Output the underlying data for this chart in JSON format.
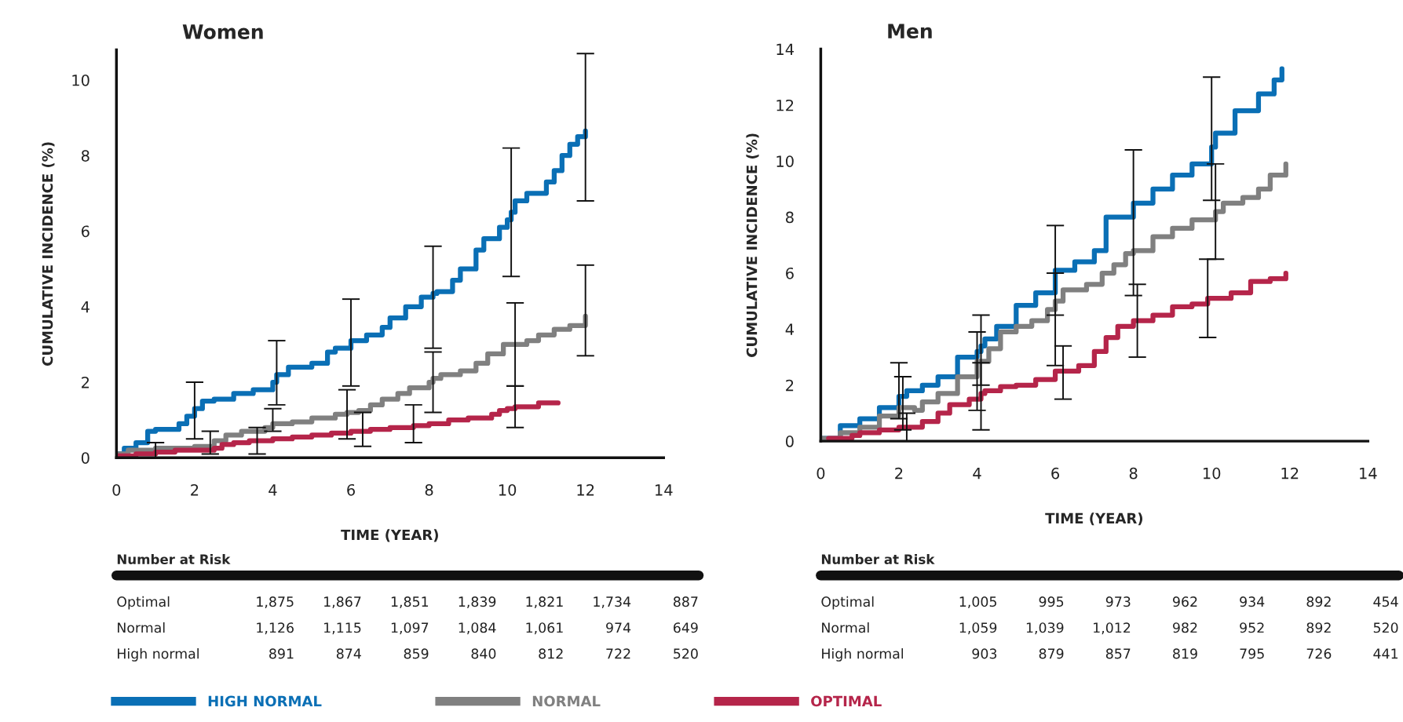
{
  "chart_data": [
    {
      "type": "step",
      "title": "Women",
      "xlabel": "TIME (YEAR)",
      "ylabel": "CUMULATIVE INCIDENCE (%)",
      "xlim": [
        0,
        14
      ],
      "ylim": [
        0,
        10.8
      ],
      "xticks": [
        0,
        2,
        4,
        6,
        8,
        10,
        12,
        14
      ],
      "yticks": [
        0,
        2,
        4,
        6,
        8,
        10
      ],
      "legend": "bottom",
      "marker": "none",
      "line_style": "solid",
      "series": [
        {
          "name": "HIGH NORMAL",
          "color": "#0a6fb5",
          "x": [
            0,
            0.2,
            0.5,
            0.8,
            1.0,
            1.6,
            1.8,
            2.0,
            2.2,
            2.5,
            3.0,
            3.5,
            4.0,
            4.1,
            4.4,
            5.0,
            5.4,
            5.6,
            6.0,
            6.4,
            6.8,
            7.0,
            7.4,
            7.8,
            8.1,
            8.2,
            8.6,
            8.8,
            9.2,
            9.4,
            9.8,
            10.0,
            10.1,
            10.2,
            10.5,
            11.0,
            11.2,
            11.4,
            11.6,
            11.8,
            12.0
          ],
          "values": [
            0.1,
            0.25,
            0.4,
            0.7,
            0.75,
            0.9,
            1.1,
            1.3,
            1.5,
            1.55,
            1.7,
            1.8,
            2.0,
            2.2,
            2.4,
            2.5,
            2.8,
            2.9,
            3.1,
            3.25,
            3.45,
            3.7,
            4.0,
            4.25,
            4.35,
            4.4,
            4.7,
            5.0,
            5.5,
            5.8,
            6.1,
            6.3,
            6.5,
            6.8,
            7.0,
            7.3,
            7.6,
            8.0,
            8.3,
            8.5,
            8.65
          ],
          "errors": [
            null,
            null,
            null,
            null,
            null,
            null,
            null,
            [
              0.5,
              2.0
            ],
            null,
            null,
            null,
            null,
            null,
            [
              1.4,
              3.1
            ],
            null,
            null,
            null,
            null,
            [
              1.9,
              4.2
            ],
            null,
            null,
            null,
            null,
            null,
            [
              2.9,
              5.6
            ],
            null,
            null,
            null,
            null,
            null,
            null,
            null,
            [
              4.8,
              8.2
            ],
            null,
            null,
            null,
            null,
            null,
            null,
            null,
            [
              6.8,
              10.7
            ]
          ]
        },
        {
          "name": "NORMAL",
          "color": "#808080",
          "x": [
            0,
            0.3,
            1.0,
            2.0,
            2.4,
            2.5,
            2.8,
            3.2,
            3.8,
            4.0,
            4.5,
            5.0,
            5.6,
            5.9,
            6.2,
            6.5,
            6.8,
            7.2,
            7.5,
            8.0,
            8.1,
            8.3,
            8.8,
            9.2,
            9.5,
            9.9,
            10.2,
            10.5,
            10.8,
            11.2,
            11.6,
            12.0
          ],
          "values": [
            0.1,
            0.2,
            0.25,
            0.3,
            0.3,
            0.45,
            0.6,
            0.7,
            0.8,
            0.9,
            0.95,
            1.05,
            1.15,
            1.2,
            1.25,
            1.4,
            1.55,
            1.7,
            1.85,
            2.0,
            2.1,
            2.2,
            2.3,
            2.5,
            2.75,
            3.0,
            3.0,
            3.1,
            3.25,
            3.4,
            3.5,
            3.75
          ],
          "errors": [
            null,
            null,
            null,
            null,
            [
              0.1,
              0.7
            ],
            null,
            null,
            null,
            null,
            [
              0.7,
              1.3
            ],
            null,
            null,
            null,
            [
              0.5,
              1.8
            ],
            null,
            null,
            null,
            null,
            null,
            null,
            [
              1.2,
              2.8
            ],
            null,
            null,
            null,
            null,
            null,
            [
              1.9,
              4.1
            ],
            null,
            null,
            null,
            null,
            [
              2.7,
              5.1
            ]
          ]
        },
        {
          "name": "OPTIMAL",
          "color": "#b5254a",
          "x": [
            0,
            0.5,
            1.0,
            1.5,
            2.5,
            2.7,
            3.0,
            3.4,
            3.6,
            4.0,
            4.5,
            5.0,
            5.5,
            6.0,
            6.3,
            6.5,
            7.0,
            7.6,
            8.0,
            8.5,
            9.0,
            9.6,
            9.8,
            10.0,
            10.2,
            10.8,
            11.3
          ],
          "values": [
            0.05,
            0.1,
            0.15,
            0.2,
            0.25,
            0.35,
            0.4,
            0.45,
            0.45,
            0.5,
            0.55,
            0.6,
            0.65,
            0.7,
            0.7,
            0.75,
            0.8,
            0.85,
            0.9,
            1.0,
            1.05,
            1.15,
            1.25,
            1.3,
            1.35,
            1.45,
            1.45
          ],
          "errors": [
            null,
            null,
            [
              0.0,
              0.4
            ],
            null,
            null,
            null,
            null,
            null,
            [
              0.1,
              0.8
            ],
            null,
            null,
            null,
            null,
            null,
            [
              0.3,
              1.2
            ],
            null,
            null,
            [
              0.4,
              1.4
            ],
            null,
            null,
            null,
            null,
            null,
            null,
            [
              0.8,
              1.9
            ],
            null,
            null
          ]
        }
      ],
      "annotations": [
        "Number at Risk",
        "Optimal",
        "1,875",
        "1,867",
        "1,851",
        "1,839",
        "1,821",
        "1,734",
        "887",
        "Normal",
        "1,126",
        "1,115",
        "1,097",
        "1,084",
        "1,061",
        "974",
        "649",
        "High normal",
        "891",
        "874",
        "859",
        "840",
        "812",
        "722",
        "520"
      ]
    },
    {
      "type": "step",
      "title": "Men",
      "xlabel": "TIME (YEAR)",
      "ylabel": "CUMULATIVE INCIDENCE (%)",
      "xlim": [
        0,
        14
      ],
      "ylim": [
        0,
        14
      ],
      "xticks": [
        0,
        2,
        4,
        6,
        8,
        10,
        12,
        14
      ],
      "yticks": [
        0,
        2,
        4,
        6,
        8,
        10,
        12,
        14
      ],
      "marker": "none",
      "line_style": "solid",
      "series": [
        {
          "color": "#0a6fb5",
          "x": [
            0,
            0.5,
            1.0,
            1.5,
            2.0,
            2.2,
            2.6,
            3.0,
            3.5,
            4.0,
            4.1,
            4.2,
            4.5,
            5.0,
            5.5,
            6.0,
            6.5,
            7.0,
            7.3,
            8.0,
            8.5,
            9.0,
            9.5,
            10.0,
            10.1,
            10.6,
            11.2,
            11.6,
            11.8
          ],
          "values": [
            0.1,
            0.55,
            0.8,
            1.2,
            1.6,
            1.8,
            2.0,
            2.3,
            3.0,
            3.2,
            3.4,
            3.65,
            4.1,
            4.85,
            5.3,
            6.1,
            6.4,
            6.8,
            8.0,
            8.5,
            9.0,
            9.5,
            9.9,
            10.5,
            11.0,
            11.8,
            12.4,
            12.9,
            13.3
          ],
          "errors": [
            null,
            null,
            null,
            null,
            [
              0.8,
              2.8
            ],
            null,
            null,
            null,
            null,
            null,
            [
              2.0,
              4.5
            ],
            null,
            null,
            null,
            null,
            [
              4.5,
              7.7
            ],
            null,
            null,
            null,
            [
              5.2,
              10.4
            ],
            null,
            null,
            null,
            [
              8.6,
              13.0
            ],
            null,
            null,
            null,
            null,
            null
          ]
        },
        {
          "color": "#808080",
          "x": [
            0,
            0.5,
            1.0,
            1.5,
            2.0,
            2.1,
            2.4,
            2.6,
            3.0,
            3.5,
            4.0,
            4.3,
            4.6,
            5.0,
            5.4,
            5.8,
            6.0,
            6.2,
            6.8,
            7.2,
            7.5,
            7.8,
            8.0,
            8.5,
            9.0,
            9.5,
            10.1,
            10.3,
            10.8,
            11.2,
            11.5,
            11.9
          ],
          "values": [
            0.1,
            0.3,
            0.5,
            0.9,
            1.2,
            1.2,
            1.1,
            1.4,
            1.7,
            2.3,
            2.85,
            3.3,
            3.9,
            4.1,
            4.3,
            4.7,
            5.0,
            5.4,
            5.6,
            6.0,
            6.3,
            6.7,
            6.8,
            7.3,
            7.6,
            7.9,
            8.2,
            8.5,
            8.7,
            9.0,
            9.5,
            9.9
          ],
          "errors": [
            null,
            null,
            null,
            null,
            null,
            [
              0.4,
              2.3
            ],
            null,
            null,
            null,
            null,
            [
              1.1,
              3.9
            ],
            null,
            null,
            null,
            null,
            null,
            [
              2.7,
              6.0
            ],
            null,
            null,
            null,
            null,
            null,
            null,
            null,
            null,
            null,
            [
              6.5,
              9.9
            ],
            null,
            null,
            null,
            null,
            null
          ]
        },
        {
          "color": "#b5254a",
          "x": [
            0.2,
            0.8,
            1.0,
            1.5,
            2.0,
            2.2,
            2.6,
            3.0,
            3.3,
            3.8,
            4.1,
            4.2,
            4.6,
            5.0,
            5.5,
            6.0,
            6.2,
            6.6,
            7.0,
            7.3,
            7.6,
            8.0,
            8.1,
            8.5,
            9.0,
            9.5,
            9.9,
            10.5,
            11.0,
            11.5,
            11.9
          ],
          "values": [
            0.1,
            0.2,
            0.3,
            0.4,
            0.5,
            0.5,
            0.7,
            1.0,
            1.3,
            1.5,
            1.7,
            1.8,
            1.95,
            2.0,
            2.2,
            2.5,
            2.5,
            2.7,
            3.2,
            3.7,
            4.1,
            4.3,
            4.3,
            4.5,
            4.8,
            4.9,
            5.1,
            5.3,
            5.7,
            5.8,
            6.0
          ],
          "errors": [
            null,
            null,
            null,
            null,
            null,
            [
              0.0,
              1.0
            ],
            null,
            null,
            null,
            null,
            [
              0.4,
              2.8
            ],
            null,
            null,
            null,
            null,
            null,
            [
              1.5,
              3.4
            ],
            null,
            null,
            null,
            null,
            null,
            [
              3.0,
              5.6
            ],
            null,
            null,
            null,
            [
              3.7,
              6.5
            ],
            null,
            null,
            null,
            null
          ]
        }
      ],
      "annotations": [
        "Number at Risk",
        "Optimal",
        "1,005",
        "995",
        "973",
        "962",
        "934",
        "892",
        "454",
        "Normal",
        "1,059",
        "1,039",
        "1,012",
        "982",
        "952",
        "892",
        "520",
        "High normal",
        "903",
        "879",
        "857",
        "819",
        "795",
        "726",
        "441"
      ]
    }
  ]
}
